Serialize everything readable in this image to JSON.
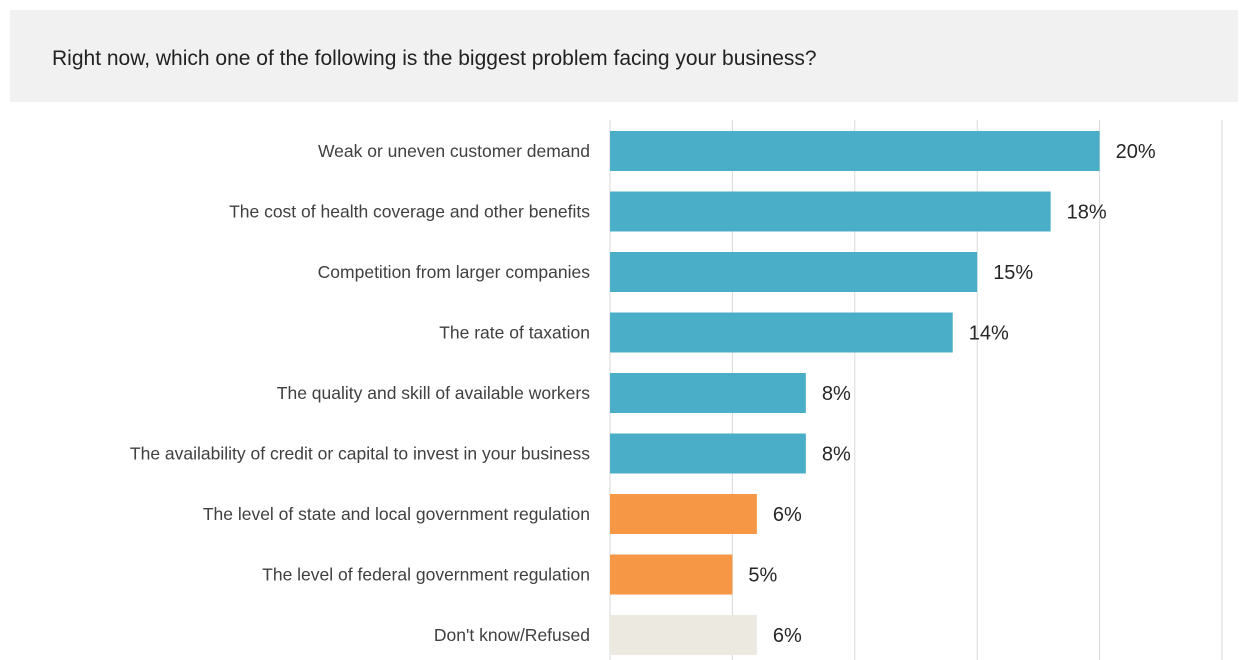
{
  "question": "Right now, which one of the following is the biggest problem facing your business?",
  "colors": {
    "primary": "#4aaec8",
    "regulation": "#f69745",
    "dontknow": "#eceae0",
    "grid": "#d9d9d9",
    "label": "#404040",
    "value": "#262626",
    "header_bg": "#f1f1f1"
  },
  "chart_data": {
    "type": "bar",
    "orientation": "horizontal",
    "title": "Right now, which one of the following is the biggest problem facing your business?",
    "categories": [
      "Weak or uneven customer demand",
      "The cost of health coverage and other benefits",
      "Competition from larger companies",
      "The rate of taxation",
      "The quality and skill of available workers",
      "The availability of credit or capital to invest in your business",
      "The level of state and local government regulation",
      "The level of federal government regulation",
      "Don't know/Refused"
    ],
    "values": [
      20,
      18,
      15,
      14,
      8,
      8,
      6,
      5,
      6
    ],
    "value_labels": [
      "20%",
      "18%",
      "15%",
      "14%",
      "8%",
      "8%",
      "6%",
      "5%",
      "6%"
    ],
    "bar_colors": [
      "primary",
      "primary",
      "primary",
      "primary",
      "primary",
      "primary",
      "regulation",
      "regulation",
      "dontknow"
    ],
    "xlim": [
      0,
      25
    ],
    "gridlines": [
      0,
      5,
      10,
      15,
      20,
      25
    ],
    "grid": true,
    "legend": false,
    "unit": "%"
  }
}
